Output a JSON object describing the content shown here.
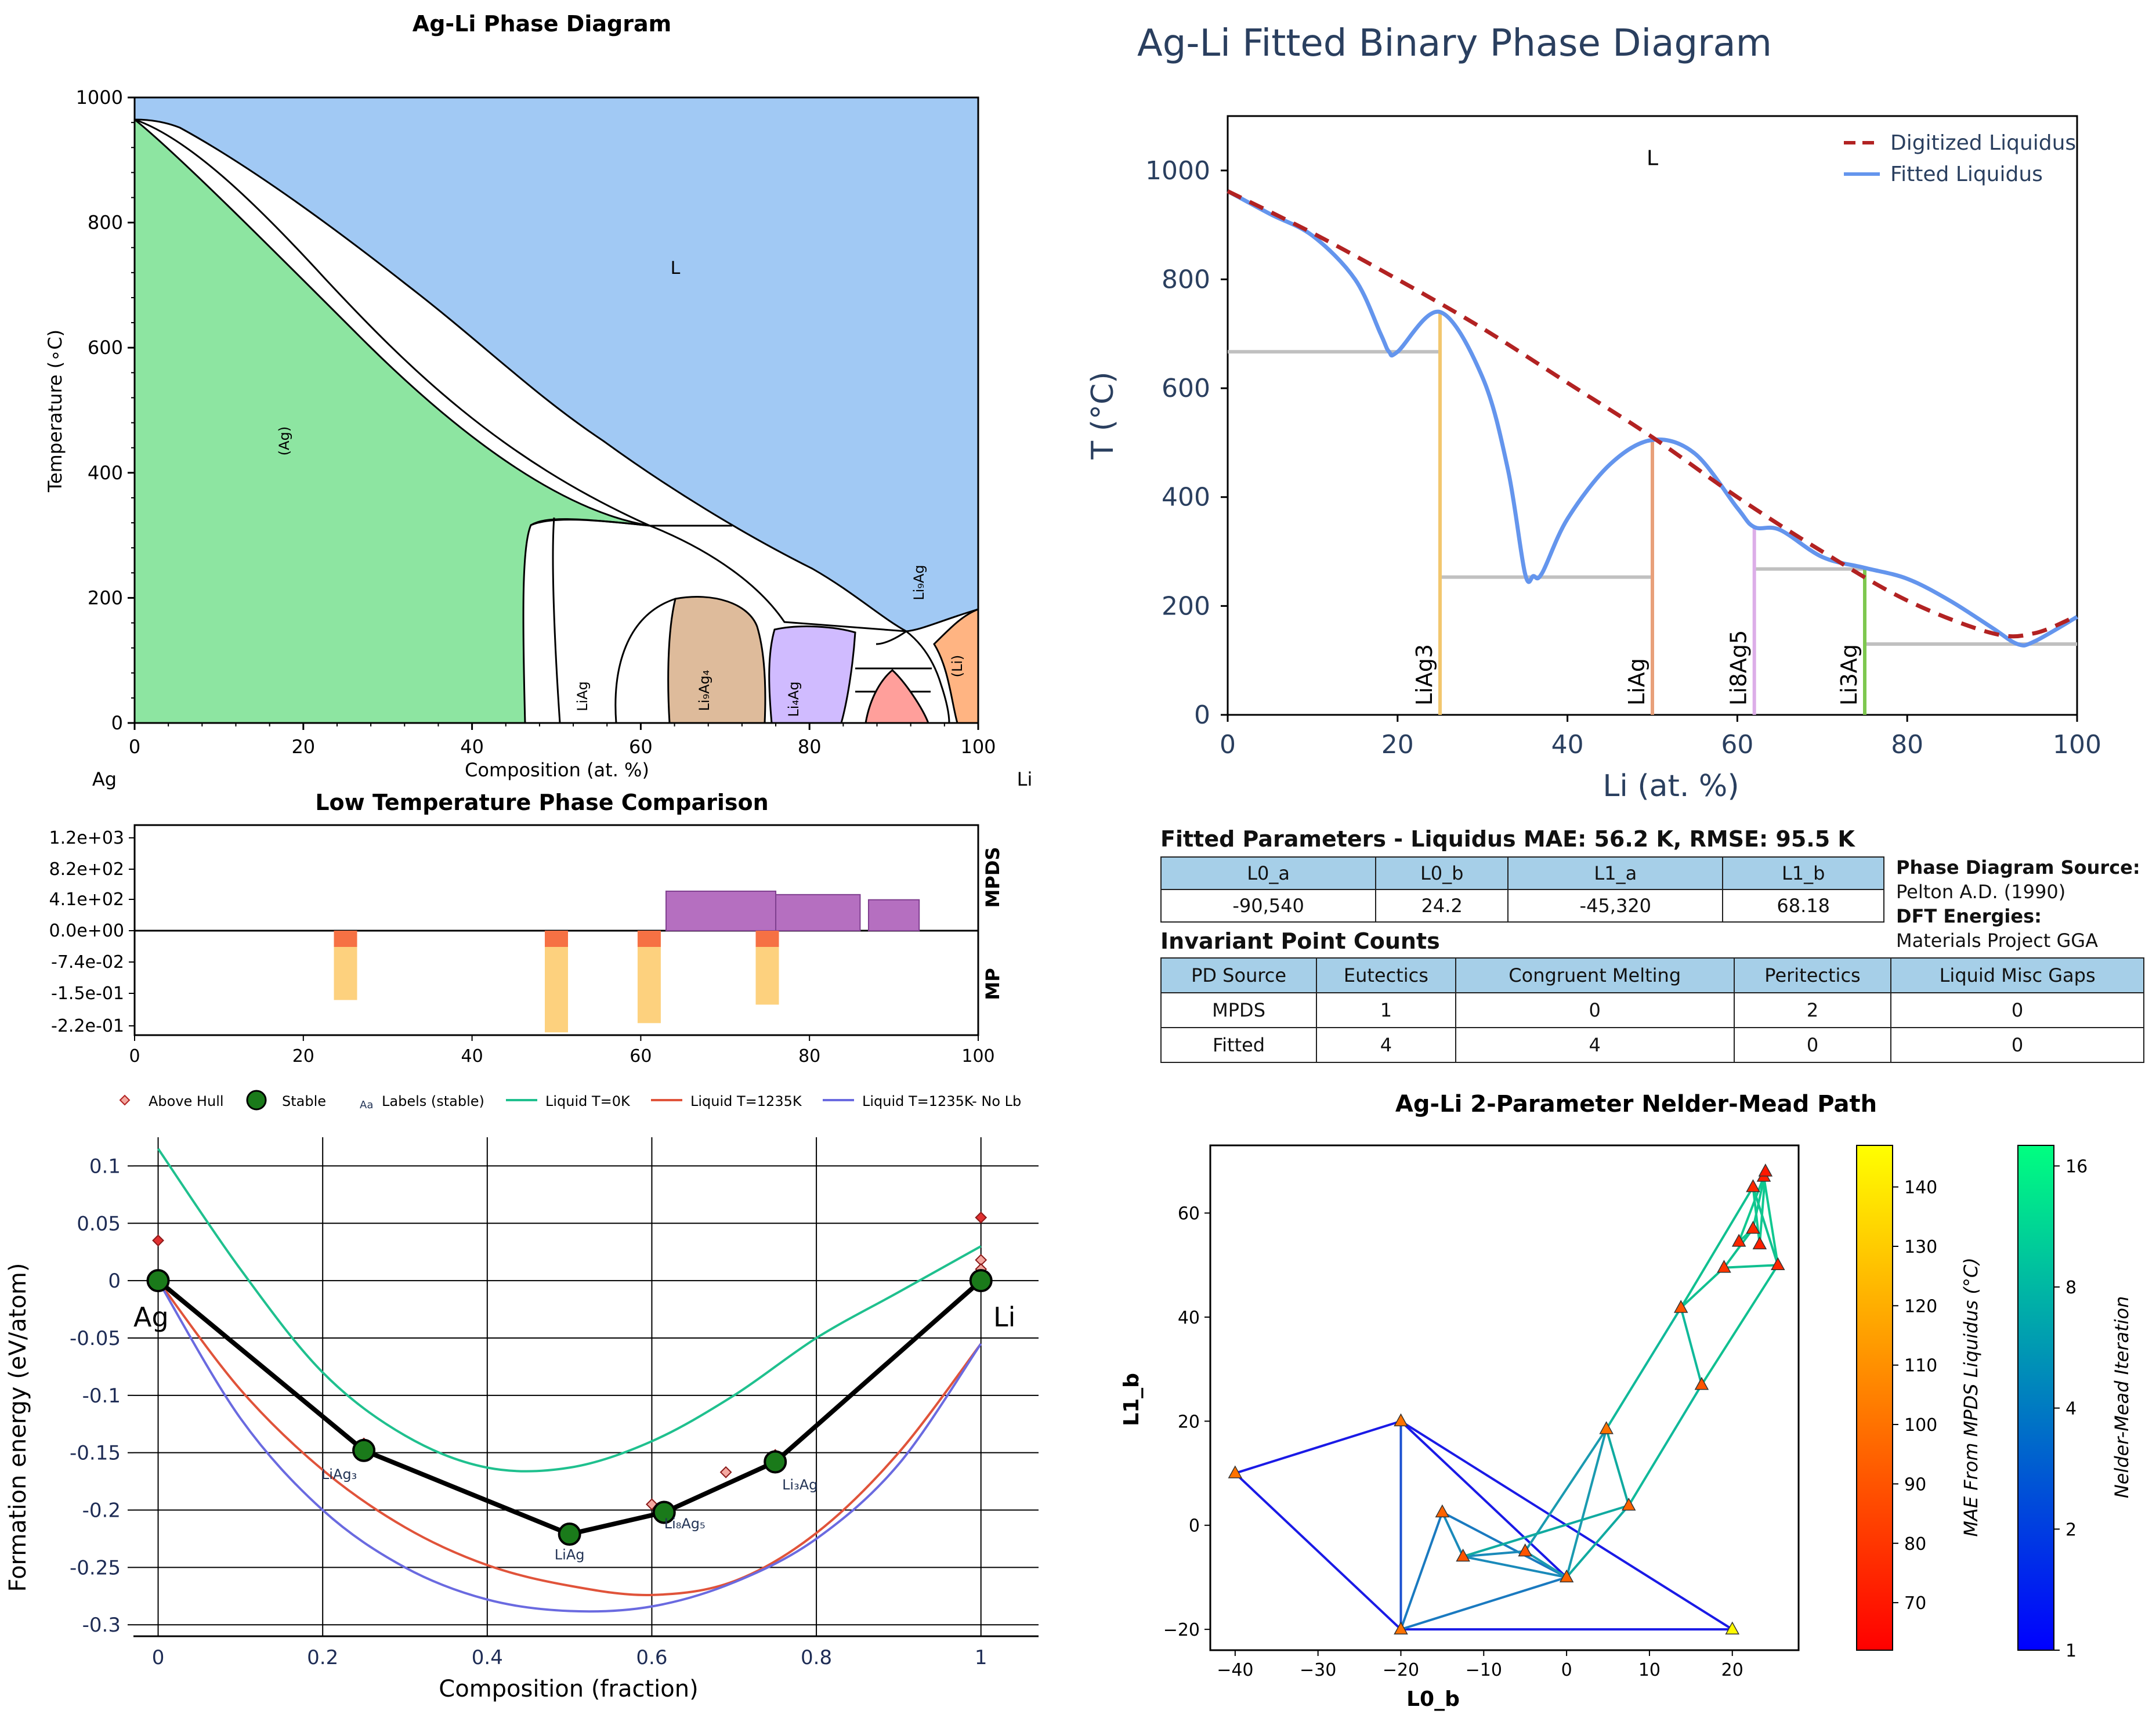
{
  "panel_pd": {
    "title": "Ag-Li Phase Diagram",
    "xlabel": "Composition (at. %)",
    "ylabel": "Temperature (∘C)",
    "left_element": "Ag",
    "right_element": "Li",
    "x_ticks": [
      "0",
      "20",
      "40",
      "60",
      "80",
      "100"
    ],
    "y_ticks": [
      "0",
      "200",
      "400",
      "600",
      "800",
      "1000"
    ],
    "region_labels": {
      "liquid": "L",
      "ag": "(Ag)",
      "li": "(Li)",
      "liag": "LiAg",
      "li9ag4": "Li₉Ag₄",
      "li4ag": "Li₄Ag",
      "li9ag": "Li₉Ag"
    },
    "colors": {
      "liquid": "#a1c9f4",
      "ag": "#8de5a1",
      "li9ag4": "#debb9b",
      "li4ag": "#d0bbff",
      "li": "#ffb482",
      "pink": "#ff9f9b"
    }
  },
  "panel_ltc": {
    "title": "Low Temperature Phase Comparison",
    "y_ticks": [
      "1.2e+03",
      "8.2e+02",
      "4.1e+02",
      "0.0e+00",
      "-7.4e-02",
      "-1.5e-01",
      "-2.2e-01"
    ],
    "x_ticks": [
      "0",
      "20",
      "40",
      "60",
      "80",
      "100"
    ],
    "right_labels": {
      "top": "MPDS",
      "bottom": "MP"
    }
  },
  "panel_fit": {
    "title": "Ag-Li Fitted Binary Phase Diagram",
    "xlabel": "Li (at. %)",
    "ylabel": "T (°C)",
    "x_ticks": [
      "0",
      "20",
      "40",
      "60",
      "80",
      "100"
    ],
    "y_ticks": [
      "0",
      "200",
      "400",
      "600",
      "800",
      "1000"
    ],
    "legend": {
      "digitized": "Digitized Liquidus",
      "fitted": "Fitted Liquidus"
    },
    "region_label": "L",
    "compound_labels": [
      "LiAg3",
      "LiAg",
      "Li8Ag5",
      "Li3Ag"
    ],
    "colors": {
      "digitized": "#b22222",
      "fitted": "#6495ed",
      "LiAg3": "#f2c76e",
      "LiAg": "#e8a07a",
      "Li8Ag5": "#dcaee8",
      "Li3Ag": "#7ec84f",
      "invariant": "#c0c0c0"
    }
  },
  "params": {
    "title": "Fitted Parameters - Liquidus MAE: 56.2 K, RMSE: 95.5 K",
    "headers": [
      "L0_a",
      "L0_b",
      "L1_a",
      "L1_b"
    ],
    "values": [
      "-90,540",
      "24.2",
      "-45,320",
      "68.18"
    ]
  },
  "source": {
    "pd_label": "Phase Diagram Source:",
    "pd_value": "Pelton A.D. (1990)",
    "dft_label": "DFT Energies:",
    "dft_value": "Materials Project GGA"
  },
  "invariants": {
    "title": "Invariant Point Counts",
    "headers": [
      "PD Source",
      "Eutectics",
      "Congruent Melting",
      "Peritectics",
      "Liquid Misc Gaps"
    ],
    "rows": [
      [
        "MPDS",
        "1",
        "0",
        "2",
        "0"
      ],
      [
        "Fitted",
        "4",
        "4",
        "0",
        "0"
      ]
    ]
  },
  "panel_fe": {
    "xlabel": "Composition (fraction)",
    "ylabel": "Formation energy (eV/atom)",
    "x_ticks": [
      "0",
      "0.2",
      "0.4",
      "0.6",
      "0.8",
      "1"
    ],
    "y_ticks": [
      "0.1",
      "0.05",
      "0",
      "-0.05",
      "-0.1",
      "-0.15",
      "-0.2",
      "-0.25",
      "-0.3"
    ],
    "legend": {
      "above": "Above Hull",
      "stable": "Stable",
      "labels_mark": "Aa",
      "labels": "Labels (stable)",
      "liq0": "Liquid T=0K",
      "liq1235": "Liquid T=1235K",
      "liqnolb": "Liquid T=1235K- No Lb"
    },
    "end_labels": {
      "left": "Ag",
      "right": "Li"
    },
    "phase_labels": [
      "LiAg₃",
      "LiAg",
      "Li₈Ag₅",
      "Li₃Ag"
    ],
    "colors": {
      "liq0": "#1fc08e",
      "liq1235": "#e0533a",
      "liqnolb": "#6a6ae0",
      "hull": "#000000",
      "stable": "#1a7a1a",
      "above": "#f4a8a0"
    }
  },
  "panel_nm": {
    "title": "Ag-Li 2-Parameter Nelder-Mead Path",
    "xlabel": "L0_b",
    "ylabel": "L1_b",
    "x_ticks": [
      "−40",
      "−30",
      "−20",
      "−10",
      "0",
      "10",
      "20"
    ],
    "y_ticks": [
      "−20",
      "0",
      "20",
      "40",
      "60"
    ],
    "cbar1_label": "MAE From MPDS Liquidus (°C)",
    "cbar1_ticks": [
      "70",
      "80",
      "90",
      "100",
      "110",
      "120",
      "130",
      "140"
    ],
    "cbar2_label": "Nelder-Mead Iteration",
    "cbar2_ticks": [
      "1",
      "2",
      "4",
      "8",
      "16"
    ]
  },
  "chart_data": [
    {
      "type": "area",
      "title": "Ag-Li Phase Diagram",
      "xlabel": "Composition (at. %)",
      "ylabel": "Temperature (∘C)",
      "xlim": [
        0,
        100
      ],
      "ylim": [
        0,
        1000
      ],
      "liquidus": {
        "x": [
          0,
          10,
          20,
          30,
          40,
          50,
          60,
          70,
          80,
          86,
          89,
          93,
          97,
          100
        ],
        "y": [
          962,
          880,
          780,
          680,
          590,
          500,
          400,
          300,
          210,
          170,
          150,
          160,
          175,
          182
        ]
      },
      "solidus_ag": {
        "x": [
          0,
          10,
          20,
          30,
          40,
          50,
          57,
          61
        ],
        "y": [
          962,
          830,
          680,
          560,
          460,
          380,
          320,
          300
        ]
      },
      "regions": [
        "L",
        "(Ag)",
        "LiAg",
        "Li9Ag4",
        "Li4Ag",
        "Li9Ag",
        "(Li)"
      ]
    },
    {
      "type": "bar",
      "title": "Low Temperature Phase Comparison",
      "xlim": [
        0,
        100
      ],
      "series": [
        {
          "name": "MPDS",
          "bars": [
            {
              "x0": 63,
              "x1": 76,
              "value": 460
            },
            {
              "x0": 76,
              "x1": 86,
              "value": 420
            },
            {
              "x0": 87,
              "x1": 93,
              "value": 360
            }
          ]
        },
        {
          "name": "MP",
          "bars": [
            {
              "x": 25,
              "value": -0.15
            },
            {
              "x": 50,
              "value": -0.22
            },
            {
              "x": 61,
              "value": -0.2
            },
            {
              "x": 75,
              "value": -0.16
            }
          ]
        }
      ]
    },
    {
      "type": "line",
      "title": "Ag-Li Fitted Binary Phase Diagram",
      "xlabel": "Li (at. %)",
      "ylabel": "T (°C)",
      "xlim": [
        0,
        100
      ],
      "ylim": [
        0,
        1100
      ],
      "series": [
        {
          "name": "Digitized Liquidus",
          "x": [
            0,
            10,
            20,
            30,
            40,
            50,
            60,
            70,
            80,
            90,
            95,
            100
          ],
          "y": [
            962,
            885,
            800,
            710,
            610,
            510,
            400,
            300,
            210,
            150,
            150,
            182
          ]
        },
        {
          "name": "Fitted Liquidus",
          "x": [
            0,
            5,
            10,
            15,
            18,
            19,
            20,
            25,
            30,
            33,
            35,
            36,
            37,
            40,
            45,
            50,
            55,
            60,
            62,
            65,
            70,
            75,
            80,
            85,
            90,
            93,
            95,
            100
          ],
          "y": [
            962,
            920,
            880,
            800,
            700,
            667,
            667,
            740,
            620,
            450,
            260,
            255,
            260,
            360,
            460,
            505,
            480,
            380,
            345,
            340,
            290,
            270,
            250,
            210,
            160,
            130,
            135,
            180
          ]
        }
      ],
      "compounds": [
        {
          "name": "LiAg3",
          "x": 25,
          "top": 740
        },
        {
          "name": "LiAg",
          "x": 50,
          "top": 505
        },
        {
          "name": "Li8Ag5",
          "x": 62,
          "top": 345
        },
        {
          "name": "Li3Ag",
          "x": 75,
          "top": 270
        }
      ],
      "invariants": [
        {
          "x0": 0,
          "x1": 25,
          "y": 667
        },
        {
          "x0": 25,
          "x1": 50,
          "y": 253
        },
        {
          "x0": 62,
          "x1": 75,
          "y": 268
        },
        {
          "x0": 75,
          "x1": 100,
          "y": 130
        }
      ]
    },
    {
      "type": "scatter",
      "xlabel": "Composition (fraction)",
      "ylabel": "Formation energy (eV/atom)",
      "xlim": [
        -0.03,
        1.07
      ],
      "ylim": [
        -0.31,
        0.125
      ],
      "stable": [
        {
          "x": 0,
          "y": 0
        },
        {
          "x": 0.25,
          "y": -0.148
        },
        {
          "x": 0.5,
          "y": -0.221
        },
        {
          "x": 0.615,
          "y": -0.202
        },
        {
          "x": 0.75,
          "y": -0.158
        },
        {
          "x": 1,
          "y": 0
        }
      ],
      "above_hull": [
        {
          "x": 0,
          "y": 0.035
        },
        {
          "x": 0,
          "y": 0.005
        },
        {
          "x": 0.25,
          "y": -0.142
        },
        {
          "x": 0.6,
          "y": -0.195
        },
        {
          "x": 0.69,
          "y": -0.167
        },
        {
          "x": 0.75,
          "y": -0.152
        },
        {
          "x": 1,
          "y": 0.055
        },
        {
          "x": 1,
          "y": 0.018
        },
        {
          "x": 1,
          "y": 0.01
        }
      ],
      "series": [
        {
          "name": "Liquid T=0K",
          "x": [
            0,
            0.1,
            0.2,
            0.3,
            0.4,
            0.5,
            0.6,
            0.7,
            0.8,
            0.9,
            1
          ],
          "y": [
            0.115,
            0.01,
            -0.08,
            -0.135,
            -0.163,
            -0.163,
            -0.14,
            -0.1,
            -0.05,
            -0.01,
            0.03
          ]
        },
        {
          "name": "Liquid T=1235K",
          "x": [
            0,
            0.1,
            0.2,
            0.3,
            0.4,
            0.5,
            0.6,
            0.7,
            0.8,
            0.9,
            1
          ],
          "y": [
            0,
            -0.095,
            -0.165,
            -0.215,
            -0.248,
            -0.266,
            -0.274,
            -0.262,
            -0.22,
            -0.15,
            -0.055
          ]
        },
        {
          "name": "Liquid T=1235K- No Lb",
          "x": [
            0,
            0.1,
            0.2,
            0.3,
            0.4,
            0.5,
            0.6,
            0.7,
            0.8,
            0.9,
            1
          ],
          "y": [
            0,
            -0.12,
            -0.2,
            -0.25,
            -0.278,
            -0.288,
            -0.284,
            -0.263,
            -0.225,
            -0.16,
            -0.055
          ]
        }
      ]
    },
    {
      "type": "scatter",
      "title": "Ag-Li 2-Parameter Nelder-Mead Path",
      "xlabel": "L0_b",
      "ylabel": "L1_b",
      "xlim": [
        -43,
        28
      ],
      "ylim": [
        -24,
        73
      ],
      "points": [
        [
          -40,
          10,
          100
        ],
        [
          -20,
          20,
          100
        ],
        [
          -20,
          -20,
          100
        ],
        [
          20,
          -20,
          145
        ],
        [
          -15,
          2.5,
          95
        ],
        [
          -12.5,
          -6,
          90
        ],
        [
          -5,
          -5,
          90
        ],
        [
          0,
          -10,
          95
        ],
        [
          4.8,
          18.5,
          100
        ],
        [
          7.5,
          3.8,
          95
        ],
        [
          13.8,
          41.8,
          90
        ],
        [
          16.3,
          27,
          90
        ],
        [
          19,
          49.5,
          80
        ],
        [
          20.8,
          54.5,
          75
        ],
        [
          22.5,
          57,
          75
        ],
        [
          22.5,
          65,
          75
        ],
        [
          23.3,
          54,
          72
        ],
        [
          23.8,
          67,
          72
        ],
        [
          24,
          68,
          70
        ],
        [
          25.5,
          50,
          75
        ]
      ],
      "path": [
        [
          -40,
          10
        ],
        [
          -20,
          20
        ],
        [
          -20,
          -20
        ],
        [
          20,
          -20
        ],
        [
          -15,
          2.5
        ],
        [
          -12.5,
          -6
        ],
        [
          -5,
          -5
        ],
        [
          0,
          -10
        ],
        [
          4.8,
          18.5
        ],
        [
          7.5,
          3.8
        ],
        [
          13.8,
          41.8
        ],
        [
          16.3,
          27
        ],
        [
          19,
          49.5
        ],
        [
          22.5,
          65
        ],
        [
          25.5,
          50
        ],
        [
          23.3,
          54
        ],
        [
          24,
          68
        ]
      ]
    }
  ]
}
